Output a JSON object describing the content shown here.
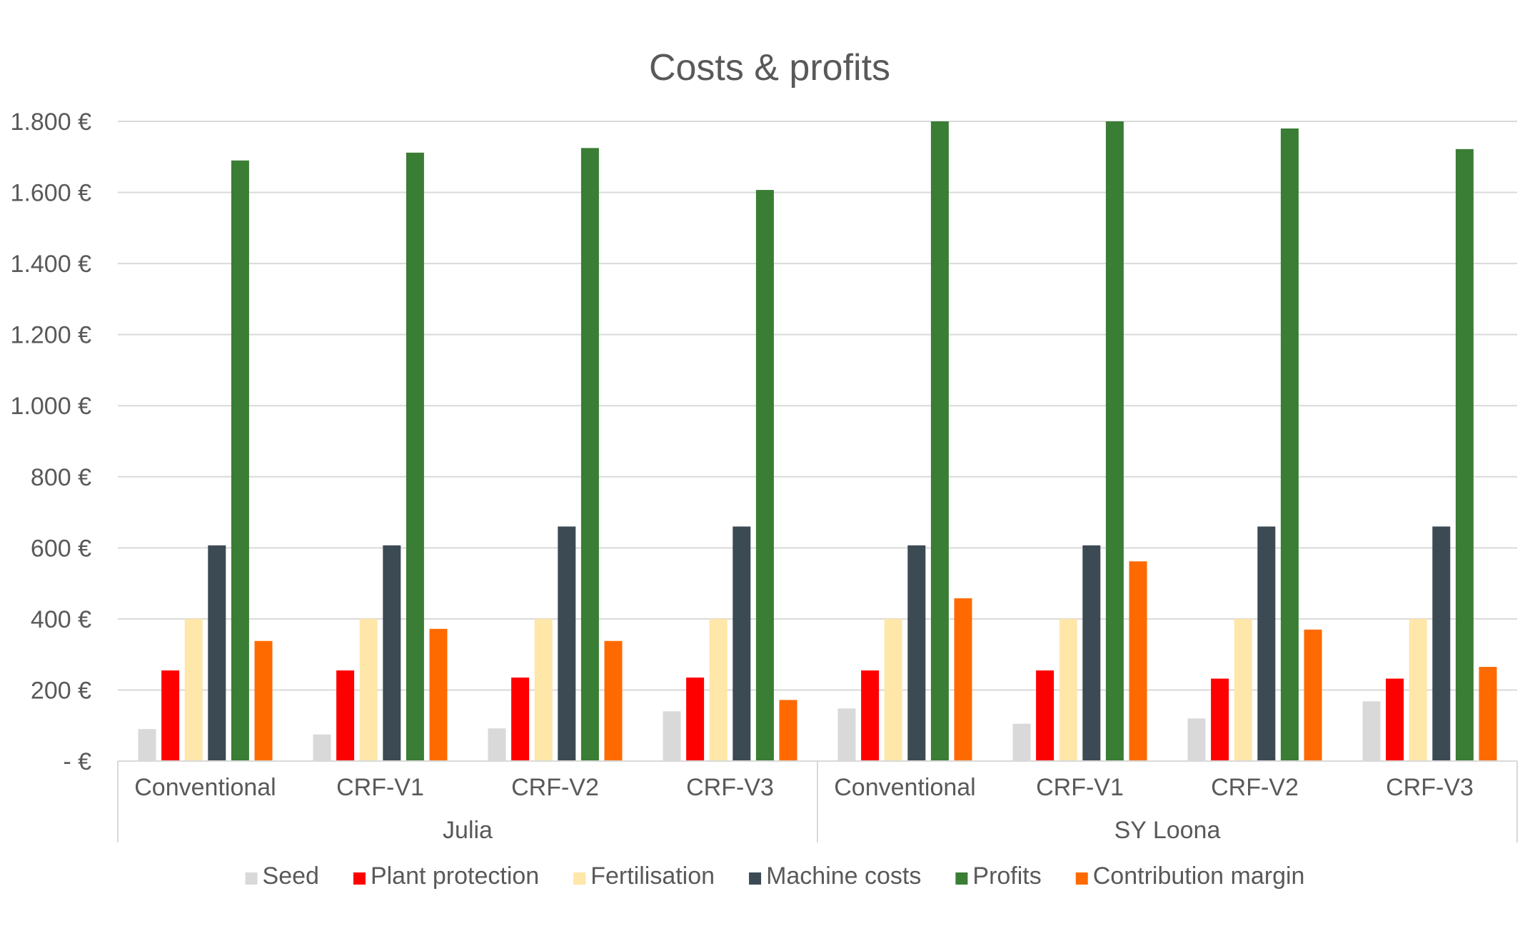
{
  "chart_data": {
    "type": "bar",
    "title": "Costs & profits",
    "xlabel": "",
    "ylabel": "",
    "ylim": [
      0,
      1800
    ],
    "y_ticks": [
      {
        "value": 0,
        "label": "-   €"
      },
      {
        "value": 200,
        "label": "200 €"
      },
      {
        "value": 400,
        "label": "400 €"
      },
      {
        "value": 600,
        "label": "600 €"
      },
      {
        "value": 800,
        "label": "800 €"
      },
      {
        "value": 1000,
        "label": "1.000 €"
      },
      {
        "value": 1200,
        "label": "1.200 €"
      },
      {
        "value": 1400,
        "label": "1.400 €"
      },
      {
        "value": 1600,
        "label": "1.600 €"
      },
      {
        "value": 1800,
        "label": "1.800 €"
      }
    ],
    "grid": true,
    "legend_position": "bottom",
    "groups": [
      {
        "name": "Julia",
        "categories": [
          "Conventional",
          "CRF-V1",
          "CRF-V2",
          "CRF-V3"
        ]
      },
      {
        "name": "SY Loona",
        "categories": [
          "Conventional",
          "CRF-V1",
          "CRF-V2",
          "CRF-V3"
        ]
      }
    ],
    "categories": [
      "Conventional",
      "CRF-V1",
      "CRF-V2",
      "CRF-V3",
      "Conventional",
      "CRF-V1",
      "CRF-V2",
      "CRF-V3"
    ],
    "series": [
      {
        "name": "Seed",
        "color": "#d9d9d9",
        "values": [
          90,
          75,
          92,
          140,
          148,
          105,
          120,
          168
        ]
      },
      {
        "name": "Plant protection",
        "color": "#ff0000",
        "values": [
          255,
          255,
          235,
          235,
          255,
          255,
          232,
          232
        ]
      },
      {
        "name": "Fertilisation",
        "color": "#ffe6a9",
        "values": [
          400,
          400,
          400,
          400,
          400,
          400,
          400,
          400
        ]
      },
      {
        "name": "Machine costs",
        "color": "#3c4a54",
        "values": [
          607,
          607,
          660,
          660,
          607,
          607,
          660,
          660
        ]
      },
      {
        "name": "Profits",
        "color": "#3a7d34",
        "values": [
          1690,
          1712,
          1725,
          1607,
          1805,
          1805,
          1780,
          1722
        ]
      },
      {
        "name": "Contribution margin",
        "color": "#ff6a00",
        "values": [
          338,
          372,
          338,
          172,
          458,
          562,
          370,
          265
        ]
      }
    ]
  }
}
